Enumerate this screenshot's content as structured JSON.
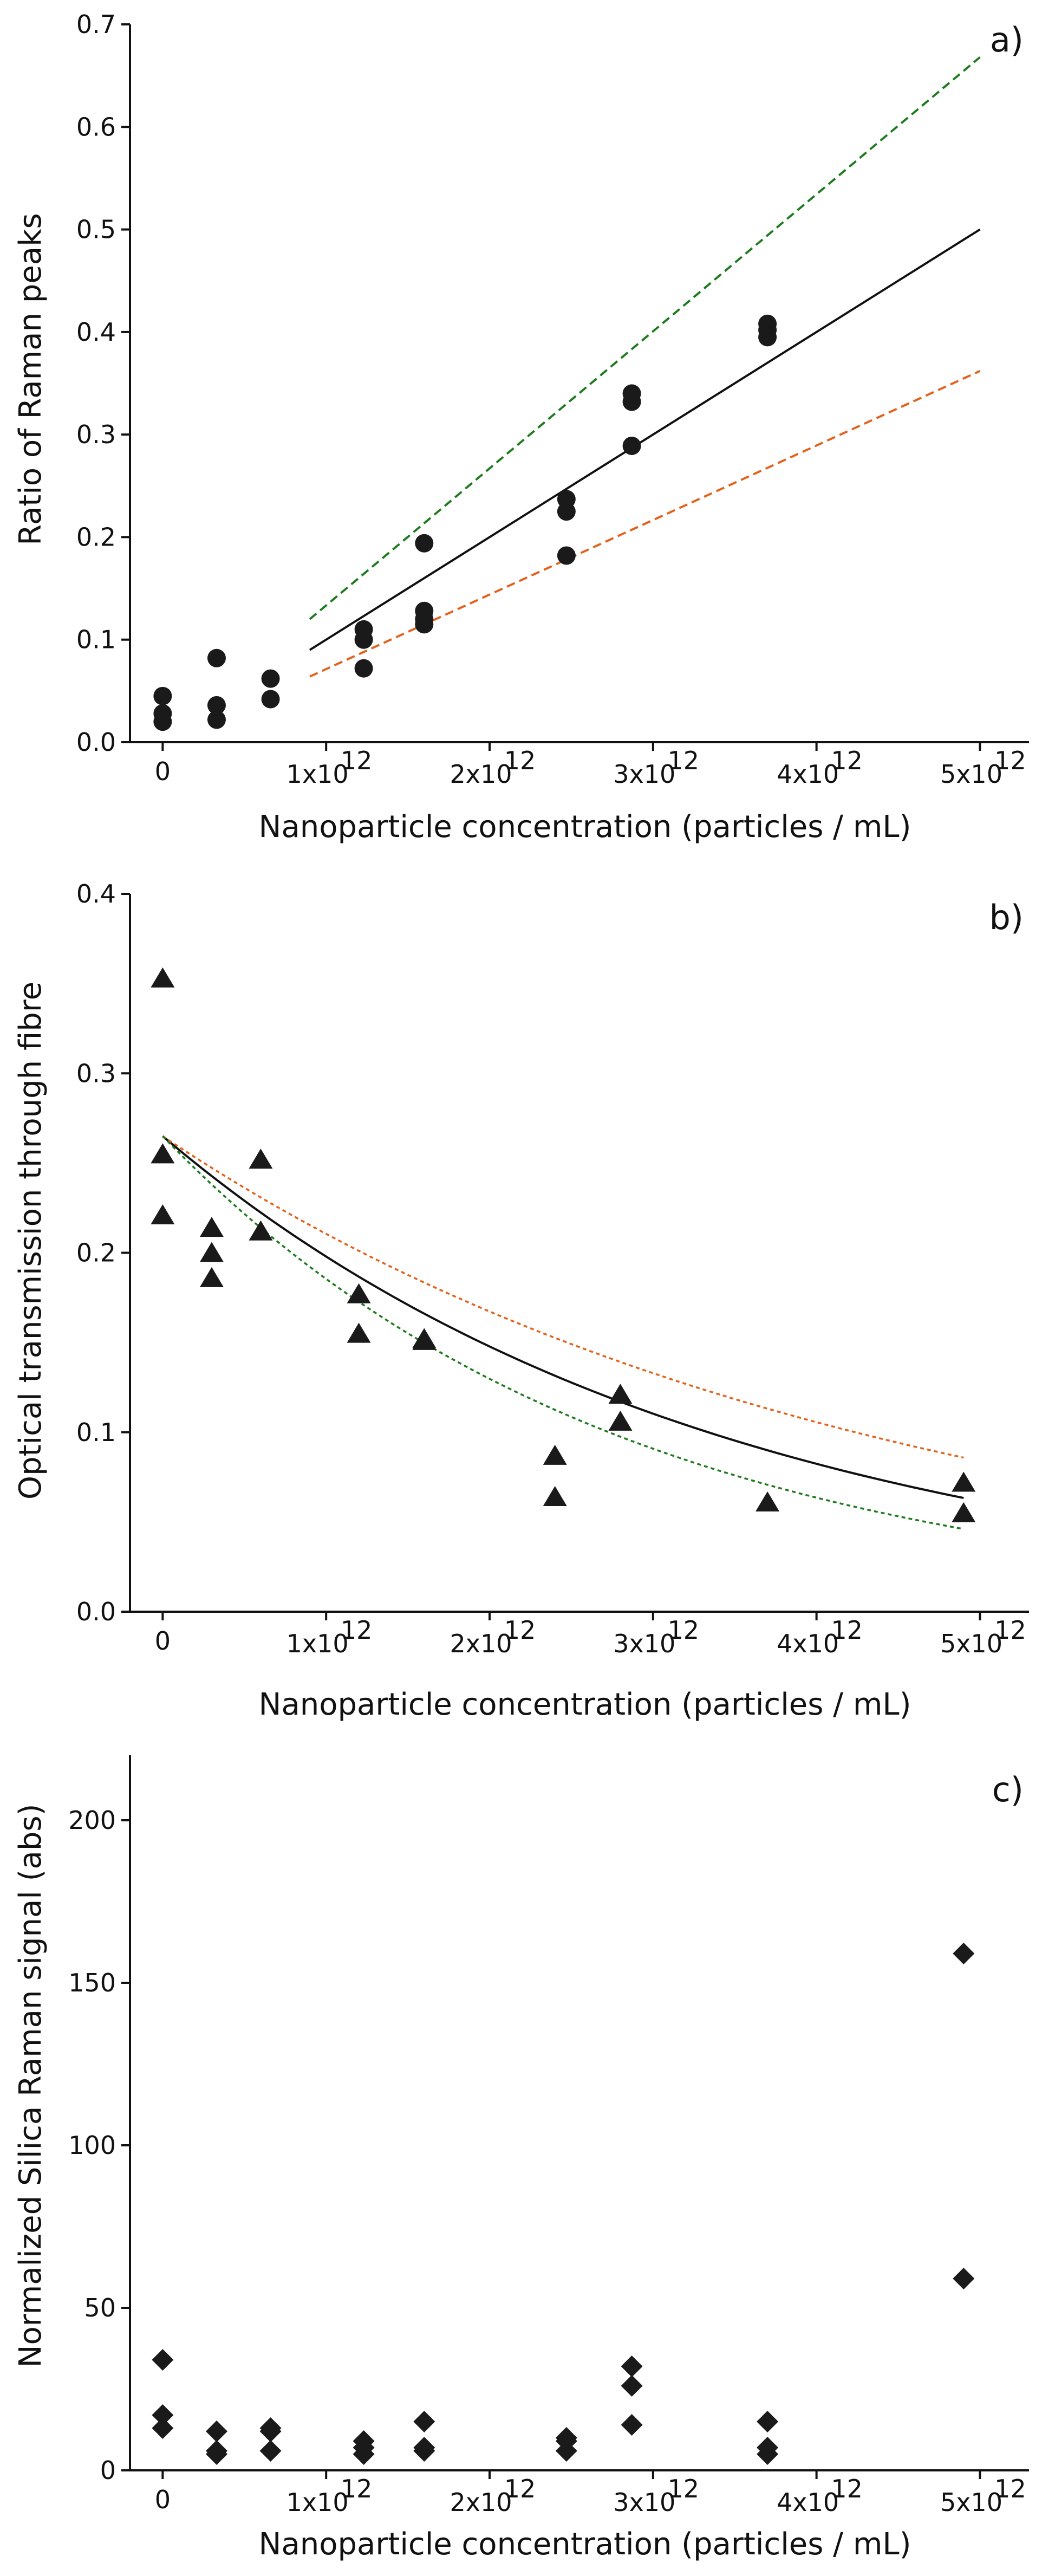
{
  "colors": {
    "fit": "#111111",
    "upper": "#1e7b1e",
    "lower": "#e4621b",
    "marker": "#1a1a1a"
  },
  "chart_data": [
    {
      "panel": "a)",
      "type": "scatter",
      "marker": "circle",
      "xlabel": "Nanoparticle concentration (particles / mL)",
      "ylabel": "Ratio of Raman peaks",
      "xlim": [
        -0.2,
        5.3
      ],
      "ylim": [
        0,
        0.7
      ],
      "yticks": [
        0,
        0.1,
        0.2,
        0.3,
        0.4,
        0.5,
        0.6,
        0.7
      ],
      "yticklabels": [
        "0.0",
        "0.1",
        "0.2",
        "0.3",
        "0.4",
        "0.5",
        "0.6",
        "0.7"
      ],
      "xticks": [
        0,
        1,
        2,
        3,
        4,
        5
      ],
      "xticklabels": [
        "0",
        "1x10",
        "2x10",
        "3x10",
        "4x10",
        "5x10"
      ],
      "xtick_exp": "12",
      "points": [
        [
          0,
          0.02
        ],
        [
          0,
          0.028
        ],
        [
          0,
          0.045
        ],
        [
          0.33,
          0.022
        ],
        [
          0.33,
          0.036
        ],
        [
          0.33,
          0.082
        ],
        [
          0.66,
          0.042
        ],
        [
          0.66,
          0.062
        ],
        [
          1.23,
          0.072
        ],
        [
          1.23,
          0.1
        ],
        [
          1.23,
          0.11
        ],
        [
          1.6,
          0.115
        ],
        [
          1.6,
          0.12
        ],
        [
          1.6,
          0.128
        ],
        [
          1.6,
          0.194
        ],
        [
          2.47,
          0.182
        ],
        [
          2.47,
          0.225
        ],
        [
          2.47,
          0.237
        ],
        [
          2.87,
          0.289
        ],
        [
          2.87,
          0.332
        ],
        [
          2.87,
          0.34
        ],
        [
          3.7,
          0.395
        ],
        [
          3.7,
          0.402
        ],
        [
          3.7,
          0.408
        ]
      ],
      "lines": [
        {
          "name": "fit",
          "style": "solid",
          "color": "#111111",
          "x": [
            0.9,
            5.0
          ],
          "y": [
            0.09,
            0.5
          ]
        },
        {
          "name": "upper bound",
          "style": "dashed",
          "color": "#1e7b1e",
          "x": [
            0.9,
            5.0
          ],
          "y": [
            0.12,
            0.668
          ]
        },
        {
          "name": "lower bound",
          "style": "dashed",
          "color": "#e4621b",
          "x": [
            0.9,
            5.0
          ],
          "y": [
            0.064,
            0.362
          ]
        }
      ]
    },
    {
      "panel": "b)",
      "type": "scatter",
      "marker": "triangle",
      "xlabel": "Nanoparticle concentration (particles / mL)",
      "ylabel": "Optical transmission through fibre",
      "xlim": [
        -0.2,
        5.3
      ],
      "ylim": [
        0,
        0.4
      ],
      "yticks": [
        0,
        0.1,
        0.2,
        0.3,
        0.4
      ],
      "yticklabels": [
        "0.0",
        "0.1",
        "0.2",
        "0.3",
        "0.4"
      ],
      "xticks": [
        0,
        1,
        2,
        3,
        4,
        5
      ],
      "xticklabels": [
        "0",
        "1x10",
        "2x10",
        "3x10",
        "4x10",
        "5x10"
      ],
      "xtick_exp": "12",
      "points": [
        [
          0,
          0.353
        ],
        [
          0,
          0.255
        ],
        [
          0,
          0.221
        ],
        [
          0.3,
          0.214
        ],
        [
          0.3,
          0.2
        ],
        [
          0.3,
          0.186
        ],
        [
          0.6,
          0.252
        ],
        [
          0.6,
          0.212
        ],
        [
          1.2,
          0.177
        ],
        [
          1.2,
          0.155
        ],
        [
          1.6,
          0.151
        ],
        [
          1.6,
          0.152
        ],
        [
          2.4,
          0.087
        ],
        [
          2.4,
          0.064
        ],
        [
          2.8,
          0.121
        ],
        [
          2.8,
          0.106
        ],
        [
          3.7,
          0.061
        ],
        [
          4.9,
          0.072
        ],
        [
          4.9,
          0.055
        ]
      ],
      "curves": [
        {
          "name": "fit",
          "style": "solid",
          "color": "#111111",
          "a": 0.265,
          "k": 0.292,
          "x_range": [
            0,
            4.9
          ]
        },
        {
          "name": "upper bound",
          "style": "dotted",
          "color": "#e4621b",
          "a": 0.265,
          "k": 0.23,
          "x_range": [
            0,
            4.9
          ]
        },
        {
          "name": "lower bound",
          "style": "dotted",
          "color": "#1e7b1e",
          "a": 0.265,
          "k": 0.357,
          "x_range": [
            0,
            4.9
          ]
        }
      ]
    },
    {
      "panel": "c)",
      "type": "scatter",
      "marker": "diamond",
      "xlabel": "Nanoparticle concentration (particles / mL)",
      "ylabel": "Normalized Silica  Raman signal (abs)",
      "xlim": [
        -0.2,
        5.3
      ],
      "ylim": [
        0,
        220
      ],
      "yticks": [
        0,
        50,
        100,
        150,
        200
      ],
      "yticklabels": [
        "0",
        "50",
        "100",
        "150",
        "200"
      ],
      "xticks": [
        0,
        1,
        2,
        3,
        4,
        5
      ],
      "xticklabels": [
        "0",
        "1x10",
        "2x10",
        "3x10",
        "4x10",
        "5x10"
      ],
      "xtick_exp": "12",
      "points": [
        [
          0,
          34
        ],
        [
          0,
          17
        ],
        [
          0,
          13
        ],
        [
          0.33,
          12
        ],
        [
          0.33,
          6
        ],
        [
          0.33,
          5
        ],
        [
          0.66,
          13
        ],
        [
          0.66,
          12
        ],
        [
          0.66,
          6
        ],
        [
          1.23,
          9
        ],
        [
          1.23,
          7
        ],
        [
          1.23,
          5
        ],
        [
          1.6,
          15
        ],
        [
          1.6,
          7
        ],
        [
          1.6,
          6
        ],
        [
          2.47,
          10
        ],
        [
          2.47,
          9
        ],
        [
          2.47,
          6
        ],
        [
          2.87,
          32
        ],
        [
          2.87,
          26
        ],
        [
          2.87,
          14
        ],
        [
          3.7,
          15
        ],
        [
          3.7,
          7
        ],
        [
          3.7,
          5
        ],
        [
          4.9,
          159
        ],
        [
          4.9,
          59
        ]
      ]
    }
  ]
}
